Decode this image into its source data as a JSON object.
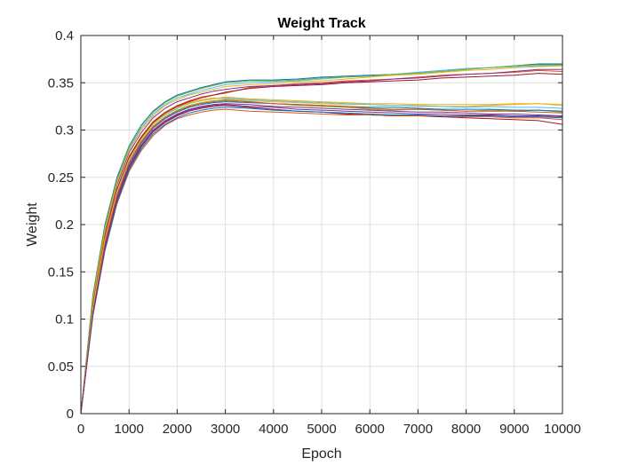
{
  "chart_data": {
    "type": "line",
    "title": "Weight Track",
    "xlabel": "Epoch",
    "ylabel": "Weight",
    "xlim": [
      0,
      10000
    ],
    "ylim": [
      0,
      0.4
    ],
    "xticks": [
      0,
      1000,
      2000,
      3000,
      4000,
      5000,
      6000,
      7000,
      8000,
      9000,
      10000
    ],
    "yticks": [
      0,
      0.05,
      0.1,
      0.15,
      0.2,
      0.25,
      0.3,
      0.35,
      0.4
    ],
    "xtick_labels": [
      "0",
      "1000",
      "2000",
      "3000",
      "4000",
      "5000",
      "6000",
      "7000",
      "8000",
      "9000",
      "10000"
    ],
    "ytick_labels": [
      "0",
      "0.05",
      "0.1",
      "0.15",
      "0.2",
      "0.25",
      "0.3",
      "0.35",
      "0.4"
    ],
    "grid": true,
    "legend": "none",
    "x": [
      0,
      250,
      500,
      750,
      1000,
      1250,
      1500,
      1750,
      2000,
      2250,
      2500,
      2750,
      3000,
      3500,
      4000,
      4500,
      5000,
      5500,
      6000,
      6500,
      7000,
      7500,
      8000,
      8500,
      9000,
      9500,
      10000
    ],
    "series": [
      {
        "color": "#0072BD",
        "values": [
          0,
          0.125,
          0.2,
          0.25,
          0.283,
          0.305,
          0.32,
          0.33,
          0.337,
          0.341,
          0.345,
          0.348,
          0.351,
          0.353,
          0.353,
          0.354,
          0.356,
          0.357,
          0.358,
          0.359,
          0.361,
          0.363,
          0.365,
          0.366,
          0.368,
          0.37,
          0.37
        ]
      },
      {
        "color": "#D95319",
        "values": [
          0,
          0.115,
          0.188,
          0.238,
          0.272,
          0.293,
          0.309,
          0.319,
          0.326,
          0.331,
          0.335,
          0.337,
          0.339,
          0.345,
          0.347,
          0.349,
          0.35,
          0.352,
          0.353,
          0.354,
          0.356,
          0.358,
          0.359,
          0.36,
          0.361,
          0.363,
          0.362
        ]
      },
      {
        "color": "#EDB120",
        "values": [
          0,
          0.113,
          0.186,
          0.236,
          0.27,
          0.291,
          0.307,
          0.318,
          0.325,
          0.329,
          0.332,
          0.334,
          0.333,
          0.331,
          0.33,
          0.329,
          0.328,
          0.327,
          0.327,
          0.326,
          0.326,
          0.325,
          0.325,
          0.326,
          0.327,
          0.328,
          0.327
        ]
      },
      {
        "color": "#7E2F8E",
        "values": [
          0,
          0.118,
          0.192,
          0.242,
          0.276,
          0.297,
          0.313,
          0.323,
          0.33,
          0.334,
          0.338,
          0.341,
          0.343,
          0.346,
          0.347,
          0.348,
          0.349,
          0.351,
          0.352,
          0.354,
          0.355,
          0.357,
          0.359,
          0.36,
          0.362,
          0.364,
          0.364
        ]
      },
      {
        "color": "#77AC30",
        "values": [
          0,
          0.11,
          0.182,
          0.232,
          0.266,
          0.288,
          0.304,
          0.314,
          0.321,
          0.326,
          0.329,
          0.331,
          0.332,
          0.33,
          0.328,
          0.326,
          0.325,
          0.324,
          0.322,
          0.321,
          0.322,
          0.321,
          0.32,
          0.321,
          0.32,
          0.321,
          0.319
        ]
      },
      {
        "color": "#4DBEEE",
        "values": [
          0,
          0.121,
          0.196,
          0.246,
          0.28,
          0.302,
          0.317,
          0.327,
          0.334,
          0.338,
          0.342,
          0.345,
          0.348,
          0.35,
          0.351,
          0.352,
          0.354,
          0.356,
          0.357,
          0.359,
          0.361,
          0.363,
          0.365,
          0.366,
          0.367,
          0.368,
          0.368
        ]
      },
      {
        "color": "#A2142F",
        "values": [
          0,
          0.105,
          0.176,
          0.226,
          0.26,
          0.282,
          0.298,
          0.308,
          0.315,
          0.32,
          0.323,
          0.325,
          0.326,
          0.324,
          0.322,
          0.32,
          0.319,
          0.317,
          0.316,
          0.315,
          0.315,
          0.314,
          0.313,
          0.312,
          0.311,
          0.31,
          0.306
        ]
      },
      {
        "color": "#0072BD",
        "values": [
          0,
          0.108,
          0.18,
          0.23,
          0.264,
          0.286,
          0.302,
          0.312,
          0.319,
          0.324,
          0.327,
          0.329,
          0.33,
          0.329,
          0.328,
          0.327,
          0.326,
          0.325,
          0.324,
          0.324,
          0.323,
          0.322,
          0.322,
          0.322,
          0.321,
          0.321,
          0.32
        ]
      },
      {
        "color": "#D95319",
        "values": [
          0,
          0.103,
          0.172,
          0.222,
          0.256,
          0.278,
          0.294,
          0.305,
          0.312,
          0.316,
          0.319,
          0.321,
          0.322,
          0.32,
          0.319,
          0.318,
          0.317,
          0.316,
          0.316,
          0.315,
          0.315,
          0.315,
          0.314,
          0.314,
          0.313,
          0.313,
          0.311
        ]
      },
      {
        "color": "#EDB120",
        "values": [
          0,
          0.119,
          0.194,
          0.244,
          0.278,
          0.3,
          0.315,
          0.326,
          0.332,
          0.337,
          0.34,
          0.343,
          0.346,
          0.348,
          0.349,
          0.351,
          0.352,
          0.354,
          0.356,
          0.358,
          0.359,
          0.361,
          0.363,
          0.364,
          0.366,
          0.367,
          0.368
        ]
      },
      {
        "color": "#7E2F8E",
        "values": [
          0,
          0.107,
          0.178,
          0.228,
          0.262,
          0.284,
          0.3,
          0.31,
          0.317,
          0.322,
          0.325,
          0.327,
          0.328,
          0.327,
          0.325,
          0.324,
          0.323,
          0.322,
          0.321,
          0.32,
          0.319,
          0.319,
          0.318,
          0.317,
          0.317,
          0.316,
          0.315
        ]
      },
      {
        "color": "#77AC30",
        "values": [
          0,
          0.123,
          0.198,
          0.248,
          0.282,
          0.304,
          0.319,
          0.329,
          0.336,
          0.34,
          0.344,
          0.347,
          0.35,
          0.352,
          0.352,
          0.353,
          0.355,
          0.356,
          0.357,
          0.359,
          0.36,
          0.362,
          0.364,
          0.366,
          0.368,
          0.369,
          0.369
        ]
      },
      {
        "color": "#4DBEEE",
        "values": [
          0,
          0.111,
          0.184,
          0.234,
          0.268,
          0.29,
          0.306,
          0.316,
          0.323,
          0.328,
          0.331,
          0.333,
          0.334,
          0.332,
          0.331,
          0.33,
          0.329,
          0.328,
          0.327,
          0.326,
          0.325,
          0.325,
          0.324,
          0.325,
          0.324,
          0.324,
          0.323
        ]
      },
      {
        "color": "#A2142F",
        "values": [
          0,
          0.114,
          0.187,
          0.237,
          0.271,
          0.292,
          0.308,
          0.318,
          0.325,
          0.33,
          0.334,
          0.337,
          0.34,
          0.344,
          0.346,
          0.347,
          0.348,
          0.35,
          0.351,
          0.352,
          0.353,
          0.355,
          0.356,
          0.357,
          0.358,
          0.36,
          0.359
        ]
      },
      {
        "color": "#0072BD",
        "values": [
          0,
          0.104,
          0.174,
          0.224,
          0.258,
          0.28,
          0.296,
          0.306,
          0.313,
          0.318,
          0.321,
          0.323,
          0.324,
          0.323,
          0.321,
          0.32,
          0.319,
          0.318,
          0.317,
          0.316,
          0.316,
          0.315,
          0.315,
          0.315,
          0.314,
          0.314,
          0.313
        ]
      },
      {
        "color": "#D95319",
        "values": [
          0,
          0.109,
          0.181,
          0.231,
          0.265,
          0.287,
          0.303,
          0.313,
          0.32,
          0.325,
          0.328,
          0.33,
          0.331,
          0.33,
          0.328,
          0.327,
          0.326,
          0.325,
          0.323,
          0.322,
          0.322,
          0.321,
          0.32,
          0.32,
          0.32,
          0.319,
          0.318
        ]
      },
      {
        "color": "#EDB120",
        "values": [
          0,
          0.112,
          0.185,
          0.235,
          0.269,
          0.29,
          0.306,
          0.317,
          0.324,
          0.328,
          0.331,
          0.333,
          0.335,
          0.333,
          0.332,
          0.331,
          0.33,
          0.329,
          0.328,
          0.328,
          0.327,
          0.327,
          0.327,
          0.327,
          0.328,
          0.328,
          0.326
        ]
      },
      {
        "color": "#7E2F8E",
        "values": [
          0,
          0.106,
          0.177,
          0.227,
          0.261,
          0.283,
          0.299,
          0.309,
          0.316,
          0.321,
          0.324,
          0.326,
          0.327,
          0.325,
          0.324,
          0.322,
          0.321,
          0.32,
          0.319,
          0.318,
          0.317,
          0.317,
          0.316,
          0.316,
          0.315,
          0.315,
          0.314
        ]
      }
    ]
  }
}
